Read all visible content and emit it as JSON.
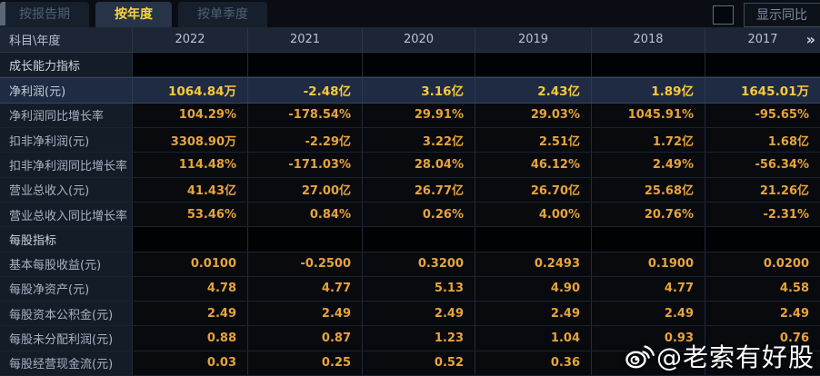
{
  "tabs": [
    {
      "label": "按报告期",
      "active": false
    },
    {
      "label": "按年度",
      "active": true
    },
    {
      "label": "按单季度",
      "active": false
    }
  ],
  "controls": {
    "show_yoy_label": "显示同比",
    "checkbox_checked": false
  },
  "table": {
    "corner_label": "科目\\年度",
    "years": [
      "2022",
      "2021",
      "2020",
      "2019",
      "2018",
      "2017"
    ],
    "more_columns_icon": "»",
    "rows": [
      {
        "type": "section",
        "label": "成长能力指标",
        "values": [
          "",
          "",
          "",
          "",
          "",
          ""
        ]
      },
      {
        "type": "highlight",
        "label": "净利润(元)",
        "values": [
          "1064.84万",
          "-2.48亿",
          "3.16亿",
          "2.43亿",
          "1.89亿",
          "1645.01万"
        ]
      },
      {
        "type": "data",
        "label": "净利润同比增长率",
        "values": [
          "104.29%",
          "-178.54%",
          "29.91%",
          "29.03%",
          "1045.91%",
          "-95.65%"
        ]
      },
      {
        "type": "data",
        "label": "扣非净利润(元)",
        "values": [
          "3308.90万",
          "-2.29亿",
          "3.22亿",
          "2.51亿",
          "1.72亿",
          "1.68亿"
        ]
      },
      {
        "type": "data",
        "label": "扣非净利润同比增长率",
        "values": [
          "114.48%",
          "-171.03%",
          "28.04%",
          "46.12%",
          "2.49%",
          "-56.34%"
        ]
      },
      {
        "type": "data",
        "label": "营业总收入(元)",
        "values": [
          "41.43亿",
          "27.00亿",
          "26.77亿",
          "26.70亿",
          "25.68亿",
          "21.26亿"
        ]
      },
      {
        "type": "data",
        "label": "营业总收入同比增长率",
        "values": [
          "53.46%",
          "0.84%",
          "0.26%",
          "4.00%",
          "20.76%",
          "-2.31%"
        ]
      },
      {
        "type": "section",
        "label": "每股指标",
        "values": [
          "",
          "",
          "",
          "",
          "",
          ""
        ]
      },
      {
        "type": "data",
        "label": "基本每股收益(元)",
        "values": [
          "0.0100",
          "-0.2500",
          "0.3200",
          "0.2493",
          "0.1900",
          "0.0200"
        ]
      },
      {
        "type": "data",
        "label": "每股净资产(元)",
        "values": [
          "4.78",
          "4.77",
          "5.13",
          "4.90",
          "4.77",
          "4.58"
        ]
      },
      {
        "type": "data",
        "label": "每股资本公积金(元)",
        "values": [
          "2.49",
          "2.49",
          "2.49",
          "2.49",
          "2.49",
          "2.49"
        ]
      },
      {
        "type": "data",
        "label": "每股未分配利润(元)",
        "values": [
          "0.88",
          "0.87",
          "1.23",
          "1.04",
          "0.93",
          "0.76"
        ]
      },
      {
        "type": "data",
        "label": "每股经营现金流(元)",
        "values": [
          "0.03",
          "0.25",
          "0.52",
          "0.36",
          "",
          ""
        ]
      }
    ]
  },
  "watermark": {
    "text": "@老索有好股"
  },
  "colors": {
    "accent_yellow": "#f9ca3a",
    "value_orange": "#e6a43c",
    "active_tab_text": "#ffd23e",
    "highlight_row_bg": "#1f2b42",
    "header_bg": "#1d2634"
  }
}
